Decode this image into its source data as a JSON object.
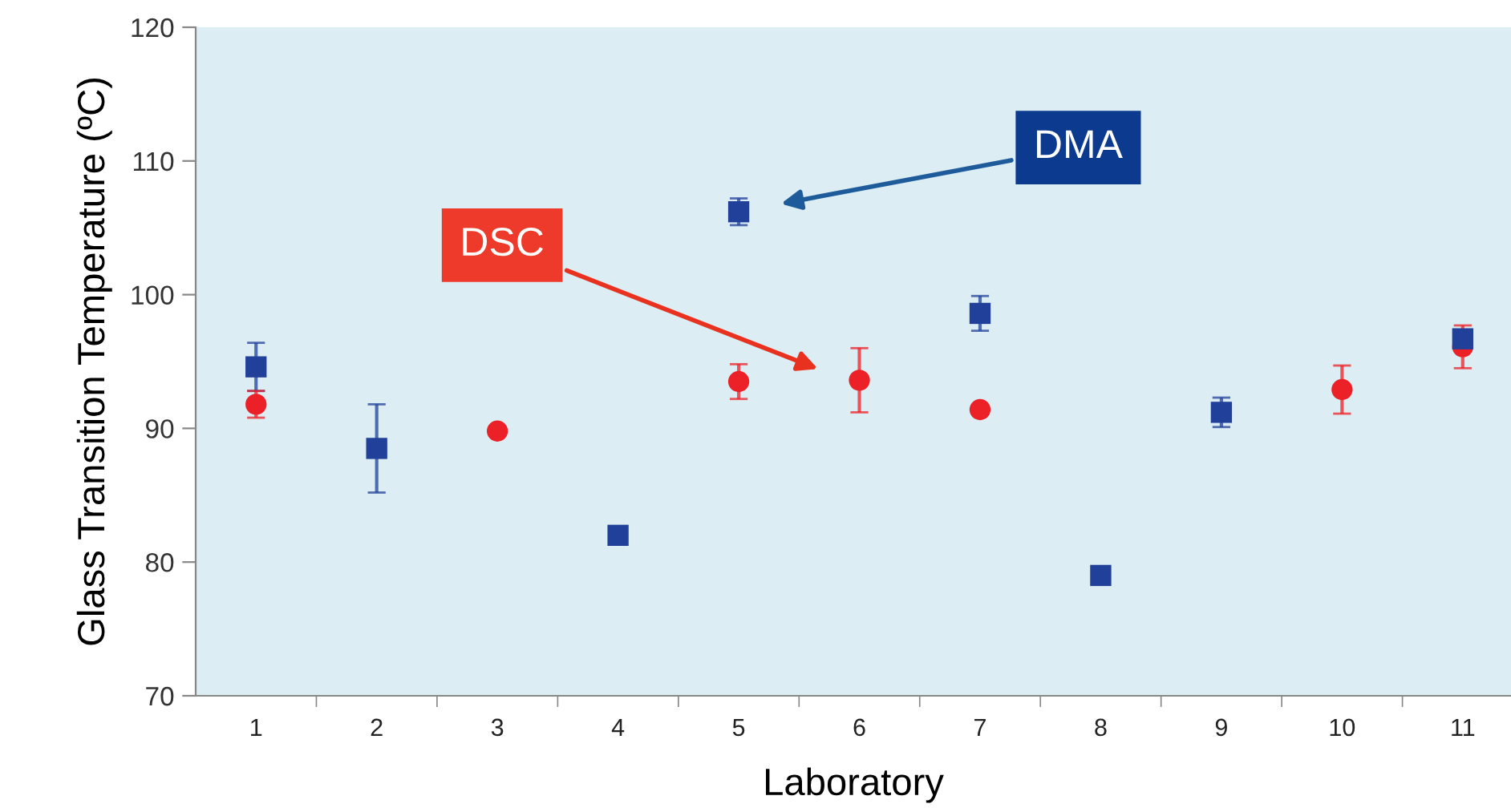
{
  "chart_data": {
    "type": "scatter",
    "xlabel": "Laboratory",
    "ylabel": "Glass Transition Temperature (ºC)",
    "x": [
      1,
      2,
      3,
      4,
      5,
      6,
      7,
      8,
      9,
      10,
      11
    ],
    "xlim": [
      0.5,
      11.4
    ],
    "xticks": [
      1,
      {
        "value": 1.5,
        "label": null
      },
      2,
      {
        "value": 2.5,
        "label": null
      },
      3,
      {
        "value": 3.5,
        "label": null
      },
      4,
      {
        "value": 4.5,
        "label": null
      },
      5,
      {
        "value": 5.5,
        "label": null
      },
      6,
      {
        "value": 6.5,
        "label": null
      },
      7,
      {
        "value": 7.5,
        "label": null
      },
      8,
      {
        "value": 8.5,
        "label": null
      },
      9,
      {
        "value": 9.5,
        "label": null
      },
      10,
      {
        "value": 10.5,
        "label": null
      },
      11
    ],
    "ylim": [
      70,
      120
    ],
    "yticks": [
      70,
      80,
      90,
      100,
      110,
      120
    ],
    "grid": false,
    "series": [
      {
        "color": "#21409a",
        "marker": "square",
        "values": [
          94.6,
          88.5,
          null,
          82.0,
          106.2,
          null,
          98.6,
          79.0,
          91.2,
          null,
          96.7
        ],
        "errors": [
          1.8,
          3.3,
          null,
          0.6,
          1.0,
          null,
          1.3,
          null,
          1.1,
          null,
          null
        ]
      },
      {
        "color": "#ec2027",
        "marker": "circle",
        "values": [
          91.8,
          null,
          89.8,
          null,
          93.5,
          93.6,
          91.4,
          null,
          null,
          92.9,
          96.1
        ],
        "errors": [
          1.0,
          null,
          null,
          null,
          1.3,
          2.4,
          null,
          null,
          null,
          1.8,
          1.6
        ]
      }
    ],
    "annotations": [
      "DMA",
      "DSC"
    ]
  }
}
